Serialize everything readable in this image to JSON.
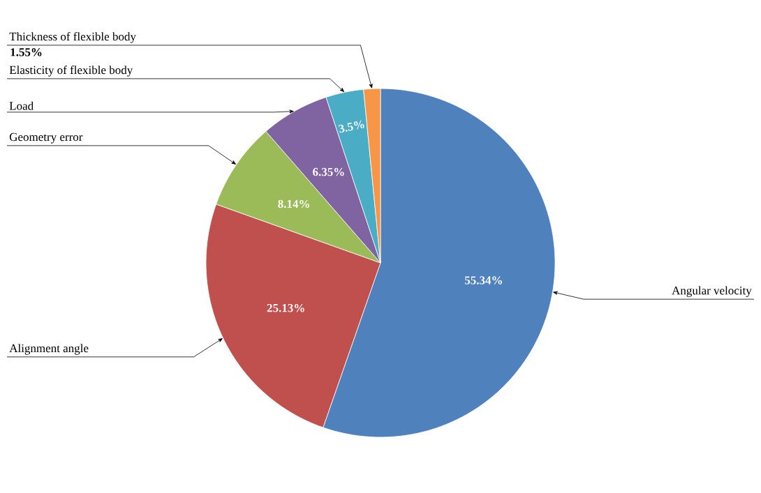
{
  "chart_data": {
    "type": "pie",
    "categories": [
      "Angular velocity",
      "Alignment angle",
      "Geometry error",
      "Load",
      "Elasticity of flexible body",
      "Thickness of flexible body"
    ],
    "values": [
      55.34,
      25.13,
      8.14,
      6.35,
      3.5,
      1.55
    ],
    "colors": [
      "#4f81bd",
      "#c0504d",
      "#9bbb59",
      "#8064a2",
      "#4bacc6",
      "#f79646"
    ],
    "value_labels": [
      "55.34%",
      "25.13%",
      "8.14%",
      "6.35%",
      "3.5%",
      "1.55%"
    ]
  }
}
